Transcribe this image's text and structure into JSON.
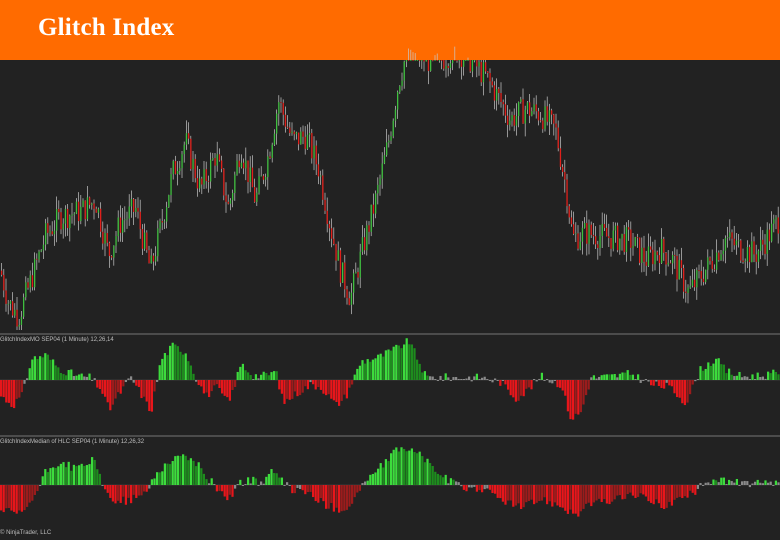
{
  "header": {
    "title": "Glitch Index"
  },
  "colors": {
    "background": "#222222",
    "header": "#ff6b00",
    "up_candle": "#3fbf3f",
    "down_candle": "#e0201b",
    "wick": "#c8c8c8",
    "bright_green": "#3ddc3d",
    "dark_green": "#1e8c1e",
    "bright_red": "#e8161b",
    "dark_red": "#9b1c1c",
    "neutral": "#8a8a8a",
    "separator": "#777777"
  },
  "panels": {
    "indicator1_label": "GlitchIndexMO SEP04 (1 Minute) 12,26,14",
    "indicator2_label": "GlitchIndexMedian of HLC SEP04 (1 Minute) 12,26,32",
    "footer": "© NinjaTrader, LLC"
  },
  "chart_data": [
    {
      "type": "candlestick",
      "title": "",
      "xlabel": "",
      "ylabel": "",
      "ylim": [
        0,
        100
      ],
      "grid": false,
      "close_profile": [
        [
          0,
          22
        ],
        [
          8,
          10
        ],
        [
          18,
          5
        ],
        [
          30,
          18
        ],
        [
          45,
          35
        ],
        [
          60,
          42
        ],
        [
          80,
          44
        ],
        [
          95,
          48
        ],
        [
          108,
          28
        ],
        [
          120,
          40
        ],
        [
          135,
          45
        ],
        [
          150,
          22
        ],
        [
          160,
          38
        ],
        [
          172,
          58
        ],
        [
          185,
          70
        ],
        [
          200,
          52
        ],
        [
          215,
          65
        ],
        [
          228,
          45
        ],
        [
          240,
          68
        ],
        [
          255,
          48
        ],
        [
          268,
          65
        ],
        [
          278,
          85
        ],
        [
          292,
          70
        ],
        [
          305,
          72
        ],
        [
          318,
          60
        ],
        [
          330,
          38
        ],
        [
          340,
          22
        ],
        [
          350,
          12
        ],
        [
          362,
          30
        ],
        [
          375,
          48
        ],
        [
          388,
          70
        ],
        [
          398,
          92
        ],
        [
          408,
          105
        ],
        [
          425,
          100
        ],
        [
          440,
          100
        ],
        [
          455,
          104
        ],
        [
          470,
          100
        ],
        [
          485,
          94
        ],
        [
          498,
          86
        ],
        [
          510,
          78
        ],
        [
          525,
          82
        ],
        [
          540,
          80
        ],
        [
          555,
          74
        ],
        [
          566,
          52
        ],
        [
          572,
          34
        ],
        [
          585,
          36
        ],
        [
          600,
          35
        ],
        [
          615,
          34
        ],
        [
          630,
          33
        ],
        [
          645,
          26
        ],
        [
          660,
          30
        ],
        [
          672,
          26
        ],
        [
          688,
          14
        ],
        [
          700,
          20
        ],
        [
          712,
          26
        ],
        [
          725,
          34
        ],
        [
          740,
          30
        ],
        [
          755,
          28
        ],
        [
          770,
          36
        ],
        [
          780,
          42
        ]
      ]
    },
    {
      "type": "histogram",
      "title": "GlitchIndexMO SEP04 (1 Minute) 12,26,14",
      "ylim": [
        -1,
        1
      ],
      "grid": false,
      "profile": [
        [
          0,
          -0.35
        ],
        [
          12,
          -0.55
        ],
        [
          22,
          -0.3
        ],
        [
          30,
          0.45
        ],
        [
          45,
          0.55
        ],
        [
          58,
          0.25
        ],
        [
          75,
          0.1
        ],
        [
          90,
          0.05
        ],
        [
          100,
          -0.2
        ],
        [
          108,
          -0.65
        ],
        [
          118,
          -0.3
        ],
        [
          130,
          0.05
        ],
        [
          140,
          -0.3
        ],
        [
          150,
          -0.7
        ],
        [
          160,
          0.45
        ],
        [
          172,
          0.75
        ],
        [
          185,
          0.6
        ],
        [
          195,
          0.05
        ],
        [
          205,
          -0.35
        ],
        [
          215,
          -0.15
        ],
        [
          228,
          -0.5
        ],
        [
          240,
          0.35
        ],
        [
          252,
          0.1
        ],
        [
          265,
          0.1
        ],
        [
          275,
          0.2
        ],
        [
          282,
          -0.5
        ],
        [
          295,
          -0.3
        ],
        [
          310,
          -0.1
        ],
        [
          320,
          -0.15
        ],
        [
          335,
          -0.55
        ],
        [
          345,
          -0.35
        ],
        [
          360,
          0.4
        ],
        [
          378,
          0.5
        ],
        [
          392,
          0.65
        ],
        [
          408,
          0.85
        ],
        [
          420,
          0.3
        ],
        [
          425,
          0.05
        ],
        [
          440,
          0.06
        ],
        [
          460,
          0.05
        ],
        [
          480,
          0.06
        ],
        [
          500,
          -0.05
        ],
        [
          515,
          -0.4
        ],
        [
          525,
          -0.25
        ],
        [
          540,
          0.08
        ],
        [
          560,
          -0.1
        ],
        [
          570,
          -0.85
        ],
        [
          580,
          -0.7
        ],
        [
          590,
          0.05
        ],
        [
          610,
          0.08
        ],
        [
          630,
          0.14
        ],
        [
          650,
          -0.1
        ],
        [
          668,
          -0.15
        ],
        [
          685,
          -0.5
        ],
        [
          700,
          0.25
        ],
        [
          715,
          0.45
        ],
        [
          725,
          0.2
        ],
        [
          740,
          0.08
        ],
        [
          760,
          0.1
        ],
        [
          780,
          0.16
        ]
      ]
    },
    {
      "type": "histogram",
      "title": "GlitchIndexMedian of HLC SEP04 (1 Minute) 12,26,32",
      "ylim": [
        -1,
        1
      ],
      "grid": false,
      "profile": [
        [
          0,
          -0.55
        ],
        [
          20,
          -0.65
        ],
        [
          35,
          -0.2
        ],
        [
          45,
          0.3
        ],
        [
          60,
          0.5
        ],
        [
          75,
          0.35
        ],
        [
          92,
          0.55
        ],
        [
          100,
          0.1
        ],
        [
          108,
          -0.3
        ],
        [
          125,
          -0.35
        ],
        [
          140,
          -0.25
        ],
        [
          148,
          -0.05
        ],
        [
          155,
          0.25
        ],
        [
          170,
          0.55
        ],
        [
          185,
          0.65
        ],
        [
          198,
          0.4
        ],
        [
          205,
          0.2
        ],
        [
          215,
          -0.05
        ],
        [
          228,
          -0.3
        ],
        [
          238,
          0.05
        ],
        [
          250,
          0.1
        ],
        [
          260,
          0.05
        ],
        [
          270,
          0.3
        ],
        [
          290,
          -0.1
        ],
        [
          305,
          -0.15
        ],
        [
          325,
          -0.45
        ],
        [
          345,
          -0.55
        ],
        [
          365,
          0.1
        ],
        [
          385,
          0.5
        ],
        [
          400,
          0.85
        ],
        [
          420,
          0.65
        ],
        [
          440,
          0.2
        ],
        [
          460,
          -0.05
        ],
        [
          480,
          -0.08
        ],
        [
          500,
          -0.3
        ],
        [
          520,
          -0.5
        ],
        [
          540,
          -0.3
        ],
        [
          560,
          -0.45
        ],
        [
          575,
          -0.65
        ],
        [
          590,
          -0.4
        ],
        [
          610,
          -0.35
        ],
        [
          630,
          -0.2
        ],
        [
          645,
          -0.3
        ],
        [
          665,
          -0.45
        ],
        [
          690,
          -0.2
        ],
        [
          705,
          0.05
        ],
        [
          715,
          0.15
        ],
        [
          730,
          0.05
        ],
        [
          745,
          0.05
        ],
        [
          760,
          0.02
        ],
        [
          780,
          0.02
        ]
      ]
    }
  ]
}
